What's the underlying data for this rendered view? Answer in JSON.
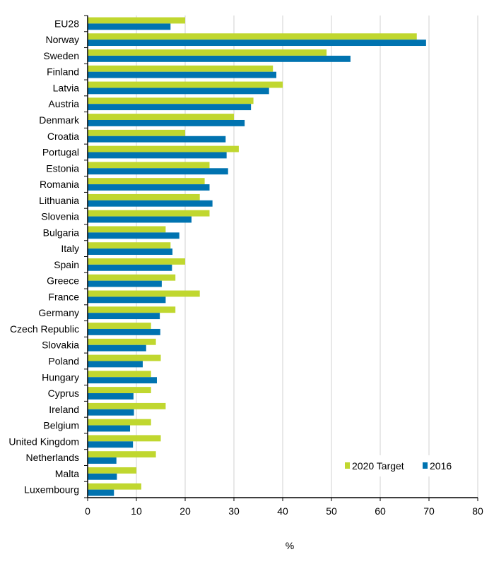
{
  "chart_data": {
    "type": "bar",
    "orientation": "horizontal",
    "title": "",
    "xlabel": "%",
    "ylabel": "",
    "xlim": [
      0,
      80
    ],
    "xticks": [
      0,
      10,
      20,
      30,
      40,
      50,
      60,
      70,
      80
    ],
    "grid": true,
    "legend_placement": "bottom-right",
    "categories": [
      "EU28",
      "Norway",
      "Sweden",
      "Finland",
      "Latvia",
      "Austria",
      "Denmark",
      "Croatia",
      "Portugal",
      "Estonia",
      "Romania",
      "Lithuania",
      "Slovenia",
      "Bulgaria",
      "Italy",
      "Spain",
      "Greece",
      "France",
      "Germany",
      "Czech Republic",
      "Slovakia",
      "Poland",
      "Hungary",
      "Cyprus",
      "Ireland",
      "Belgium",
      "United Kingdom",
      "Netherlands",
      "Malta",
      "Luxembourg"
    ],
    "series": [
      {
        "name": "2020 Target",
        "color": "#c0d72f",
        "values": [
          20,
          67.5,
          49,
          38,
          40,
          34,
          30,
          20,
          31,
          25,
          24,
          23,
          25,
          16,
          17,
          20,
          18,
          23,
          18,
          13,
          14,
          15,
          13,
          13,
          16,
          13,
          15,
          14,
          10,
          11
        ]
      },
      {
        "name": "2016",
        "color": "#0073b0",
        "values": [
          17.0,
          69.4,
          53.9,
          38.7,
          37.2,
          33.5,
          32.2,
          28.3,
          28.5,
          28.8,
          25.0,
          25.6,
          21.3,
          18.8,
          17.4,
          17.3,
          15.2,
          16.0,
          14.8,
          14.9,
          12.0,
          11.3,
          14.2,
          9.4,
          9.5,
          8.7,
          9.3,
          5.9,
          6.0,
          5.4
        ]
      }
    ]
  }
}
